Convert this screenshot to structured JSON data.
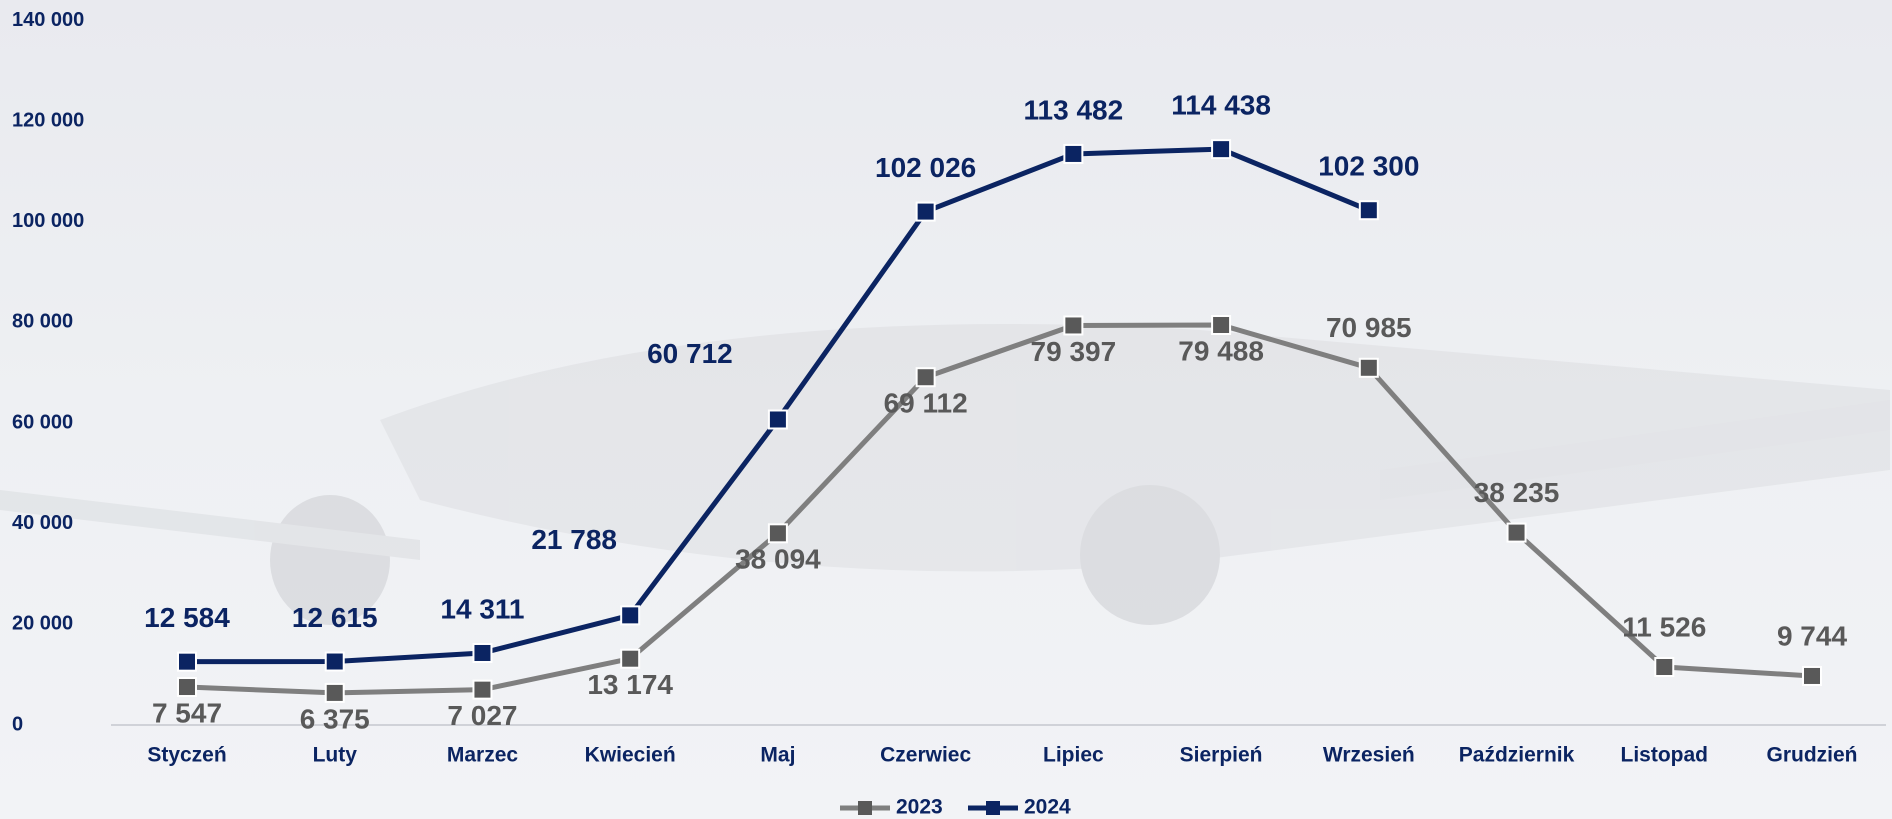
{
  "chart_data": {
    "type": "line",
    "categories": [
      "Styczeń",
      "Luty",
      "Marzec",
      "Kwiecień",
      "Maj",
      "Czerwiec",
      "Lipiec",
      "Sierpień",
      "Wrzesień",
      "Październik",
      "Listopad",
      "Grudzień"
    ],
    "series": [
      {
        "name": "2023",
        "color": "#7f7f7f",
        "marker_color": "#595959",
        "values": [
          7547,
          6375,
          7027,
          13174,
          38094,
          69112,
          79397,
          79488,
          70985,
          38235,
          11526,
          9744
        ],
        "value_labels": [
          "7 547",
          "6 375",
          "7 027",
          "13 174",
          "38 094",
          "69 112",
          "79 397",
          "79 488",
          "70 985",
          "38 235",
          "11 526",
          "9 744"
        ]
      },
      {
        "name": "2024",
        "color": "#0b2462",
        "marker_color": "#0b2462",
        "values": [
          12584,
          12615,
          14311,
          21788,
          60712,
          102026,
          113482,
          114438,
          102300,
          null,
          null,
          null
        ],
        "value_labels": [
          "12 584",
          "12 615",
          "14 311",
          "21 788",
          "60 712",
          "102 026",
          "113 482",
          "114 438",
          "102 300",
          null,
          null,
          null
        ]
      }
    ],
    "ylim": [
      0,
      140000
    ],
    "yticks": [
      {
        "value": 0,
        "label": "0"
      },
      {
        "value": 20000,
        "label": "20 000"
      },
      {
        "value": 40000,
        "label": "40 000"
      },
      {
        "value": 60000,
        "label": "60 000"
      },
      {
        "value": 80000,
        "label": "80 000"
      },
      {
        "value": 100000,
        "label": "100 000"
      },
      {
        "value": 120000,
        "label": "120 000"
      },
      {
        "value": 140000,
        "label": "140 000"
      }
    ],
    "grid": false,
    "legend": "bottom"
  }
}
